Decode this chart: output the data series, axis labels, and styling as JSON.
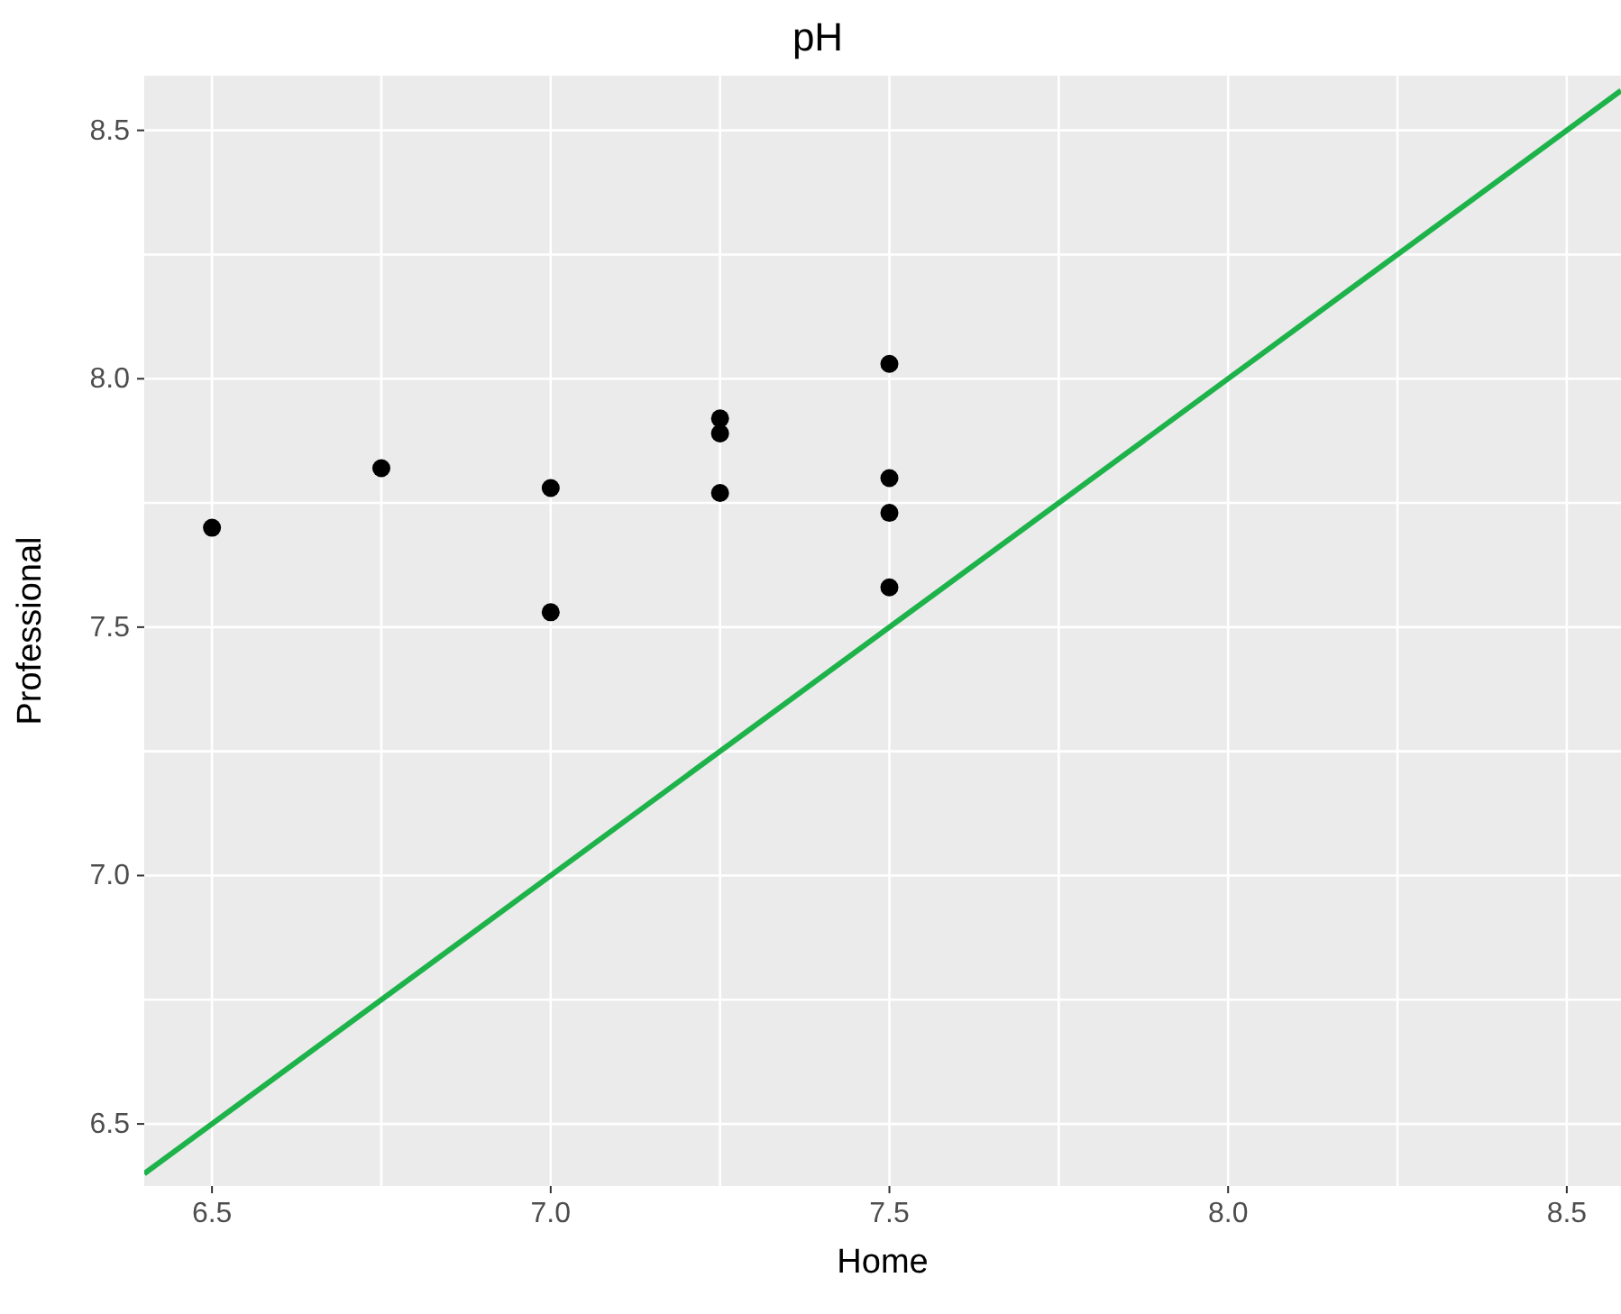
{
  "chart_data": {
    "type": "scatter",
    "title": "pH",
    "xlabel": "Home",
    "ylabel": "Professional",
    "x": [
      6.5,
      6.75,
      7.0,
      7.0,
      7.25,
      7.25,
      7.25,
      7.5,
      7.5,
      7.5,
      7.5
    ],
    "series": [
      {
        "color": "#000000",
        "values": [
          7.7,
          7.82,
          7.78,
          7.53,
          7.92,
          7.89,
          7.77,
          8.03,
          7.8,
          7.73,
          7.58
        ]
      },
      {
        "type": "line",
        "color": "#1db34a",
        "marker": "none",
        "x": [
          6.4,
          8.58
        ],
        "values": [
          6.4,
          8.58
        ]
      }
    ],
    "xlim": [
      6.4,
      8.58
    ],
    "ylim": [
      6.375,
      8.61
    ],
    "xticks": [
      6.5,
      {
        "value": 6.75,
        "label": null
      },
      {
        "value": 7,
        "label": "7.0"
      },
      {
        "value": 7.25,
        "label": null
      },
      7.5,
      {
        "value": 7.75,
        "label": null
      },
      {
        "value": 8,
        "label": "8.0"
      },
      {
        "value": 8.25,
        "label": null
      },
      8.5
    ],
    "yticks": [
      6.5,
      {
        "value": 6.75,
        "label": null
      },
      {
        "value": 7,
        "label": "7.0"
      },
      {
        "value": 7.25,
        "label": null
      },
      7.5,
      {
        "value": 7.75,
        "label": null
      },
      {
        "value": 8,
        "label": "8.0"
      },
      {
        "value": 8.25,
        "label": null
      },
      8.5
    ],
    "grid": true,
    "marker": "circle",
    "line_style": "solid"
  }
}
